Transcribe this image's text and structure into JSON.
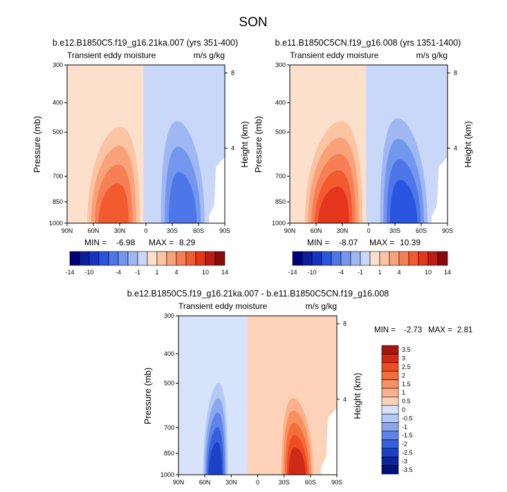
{
  "figure": {
    "title": "SON"
  },
  "chart_data": [
    {
      "type": "heatmap",
      "subplot_title": "b.e12.B1850C5.f19_g16.21ka.007 (yrs 351-400)",
      "left_string": "Transient eddy moisture",
      "right_string": "m/s g/kg",
      "xlabel": "",
      "ylabel": "Pressure (mb)",
      "y2label": "Height (km)",
      "xticks": [
        "90N",
        "60N",
        "30N",
        "0",
        "30S",
        "60S",
        "90S"
      ],
      "yticks": [
        "300",
        "400",
        "500",
        "700",
        "850",
        "1000"
      ],
      "y2ticks": [
        "8",
        "4"
      ],
      "xlim": [
        90,
        -90
      ],
      "ylim": [
        1000,
        300
      ],
      "min_label": "MIN =",
      "min_value": "-6.98",
      "max_label": "MAX =",
      "max_value": "8.29",
      "features": [
        {
          "lat": 37,
          "p_top": 480,
          "halfwidth": 30,
          "value": 8.29
        },
        {
          "lat": -42,
          "p_top": 460,
          "halfwidth": 25,
          "value": -6.98
        }
      ],
      "colorbar": {
        "levels": [
          -14,
          -12,
          -10,
          -8,
          -6,
          -4,
          -2,
          -1,
          0,
          1,
          2,
          4,
          6,
          8,
          10,
          12,
          14
        ],
        "labels": [
          "-14",
          "-10",
          "-4",
          "-1",
          "1",
          "4",
          "10",
          "14"
        ]
      }
    },
    {
      "type": "heatmap",
      "subplot_title": "b.e11.B1850C5CN.f19_g16.008 (yrs 1351-1400)",
      "left_string": "Transient eddy moisture",
      "right_string": "m/s g/kg",
      "xlabel": "",
      "ylabel": "Pressure (mb)",
      "y2label": "Height (km)",
      "xticks": [
        "90N",
        "60N",
        "30N",
        "0",
        "30S",
        "60S",
        "90S"
      ],
      "yticks": [
        "300",
        "400",
        "500",
        "700",
        "850",
        "1000"
      ],
      "y2ticks": [
        "8",
        "4"
      ],
      "xlim": [
        90,
        -90
      ],
      "ylim": [
        1000,
        300
      ],
      "min_label": "MIN =",
      "min_value": "-8.07",
      "max_label": "MAX =",
      "max_value": "10.39",
      "features": [
        {
          "lat": 40,
          "p_top": 460,
          "halfwidth": 33,
          "value": 10.39
        },
        {
          "lat": -40,
          "p_top": 450,
          "halfwidth": 27,
          "value": -8.07
        }
      ],
      "colorbar": {
        "levels": [
          -14,
          -12,
          -10,
          -8,
          -6,
          -4,
          -2,
          -1,
          0,
          1,
          2,
          4,
          6,
          8,
          10,
          12,
          14
        ],
        "labels": [
          "-14",
          "-10",
          "-4",
          "-1",
          "1",
          "4",
          "10",
          "14"
        ]
      }
    },
    {
      "type": "heatmap",
      "subplot_title": "b.e12.B1850C5.f19_g16.21ka.007 - b.e11.B1850C5CN.f19_g16.008",
      "left_string": "Transient eddy moisture",
      "right_string": "m/s g/kg",
      "xlabel": "",
      "ylabel": "Pressure (mb)",
      "y2label": "Height (km)",
      "xticks": [
        "90N",
        "60N",
        "30N",
        "0",
        "30S",
        "60S",
        "90S"
      ],
      "yticks": [
        "300",
        "400",
        "500",
        "700",
        "850",
        "1000"
      ],
      "y2ticks": [
        "8",
        "4"
      ],
      "xlim": [
        90,
        -90
      ],
      "ylim": [
        1000,
        300
      ],
      "min_label": "MIN =",
      "min_value": "-2.73",
      "max_label": "MAX =",
      "max_value": "2.81",
      "features": [
        {
          "lat": 48,
          "p_top": 500,
          "halfwidth": 14,
          "value": -2.73
        },
        {
          "lat": -45,
          "p_top": 560,
          "halfwidth": 18,
          "value": 2.81
        }
      ],
      "colorbar": {
        "levels": [
          3.5,
          3,
          2.5,
          2,
          1.5,
          1,
          0.5,
          0,
          -0.5,
          -1,
          -1.5,
          -2,
          -2.5,
          -3,
          -3.5
        ],
        "labels": [
          "3.5",
          "3",
          "2.5",
          "2",
          "1.5",
          "1",
          "0.5",
          "0",
          "-0.5",
          "-1",
          "-1.5",
          "-2",
          "-2.5",
          "-3",
          "-3.5"
        ]
      }
    }
  ],
  "colors": {
    "blues": [
      "#00007a",
      "#0a1fa0",
      "#1634c4",
      "#2a55e0",
      "#4d76e8",
      "#7497ee",
      "#9fb7f3",
      "#c9d8f8"
    ],
    "reds": [
      "#fde0cc",
      "#fbc4a3",
      "#f9a27a",
      "#f77f55",
      "#f25a30",
      "#e3361c",
      "#bd1c12",
      "#8a0b0b"
    ],
    "diff_reds_top_down": [
      "#a5160f",
      "#cf2a16",
      "#ed4b20",
      "#f46d3a",
      "#f89060",
      "#fab28c",
      "#fcd3b8"
    ],
    "diff_blues_top_down": [
      "#d7e3fb",
      "#b5c9f6",
      "#8aa7f0",
      "#5e84e8",
      "#3661de",
      "#1b41c4",
      "#0c259b",
      "#00117a"
    ]
  }
}
